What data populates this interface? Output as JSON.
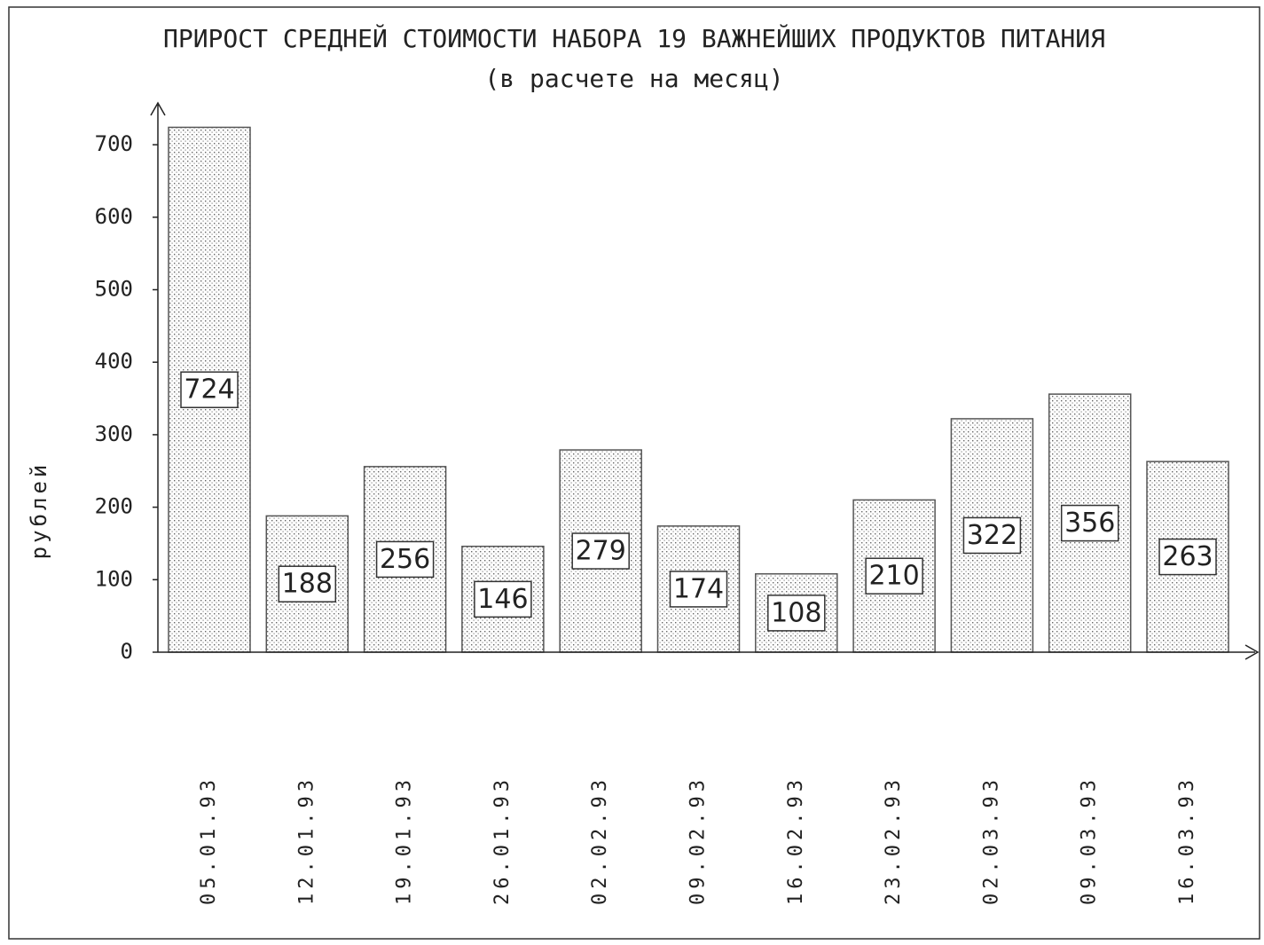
{
  "chart_data": {
    "type": "bar",
    "title": "ПРИРОСТ СРЕДНЕЙ СТОИМОСТИ НАБОРА 19 ВАЖНЕЙШИХ ПРОДУКТОВ ПИТАНИЯ",
    "subtitle": "(в расчете на месяц)",
    "y_label": "рублей",
    "categories": [
      "05.01.93",
      "12.01.93",
      "19.01.93",
      "26.01.93",
      "02.02.93",
      "09.02.93",
      "16.02.93",
      "23.02.93",
      "02.03.93",
      "09.03.93",
      "16.03.93"
    ],
    "values": [
      724,
      188,
      256,
      146,
      279,
      174,
      108,
      210,
      322,
      356,
      263
    ],
    "color": "#555555",
    "ylim": [
      0,
      750
    ],
    "yticks": [
      0,
      100,
      200,
      300,
      400,
      500,
      600,
      700
    ],
    "grid": false
  }
}
